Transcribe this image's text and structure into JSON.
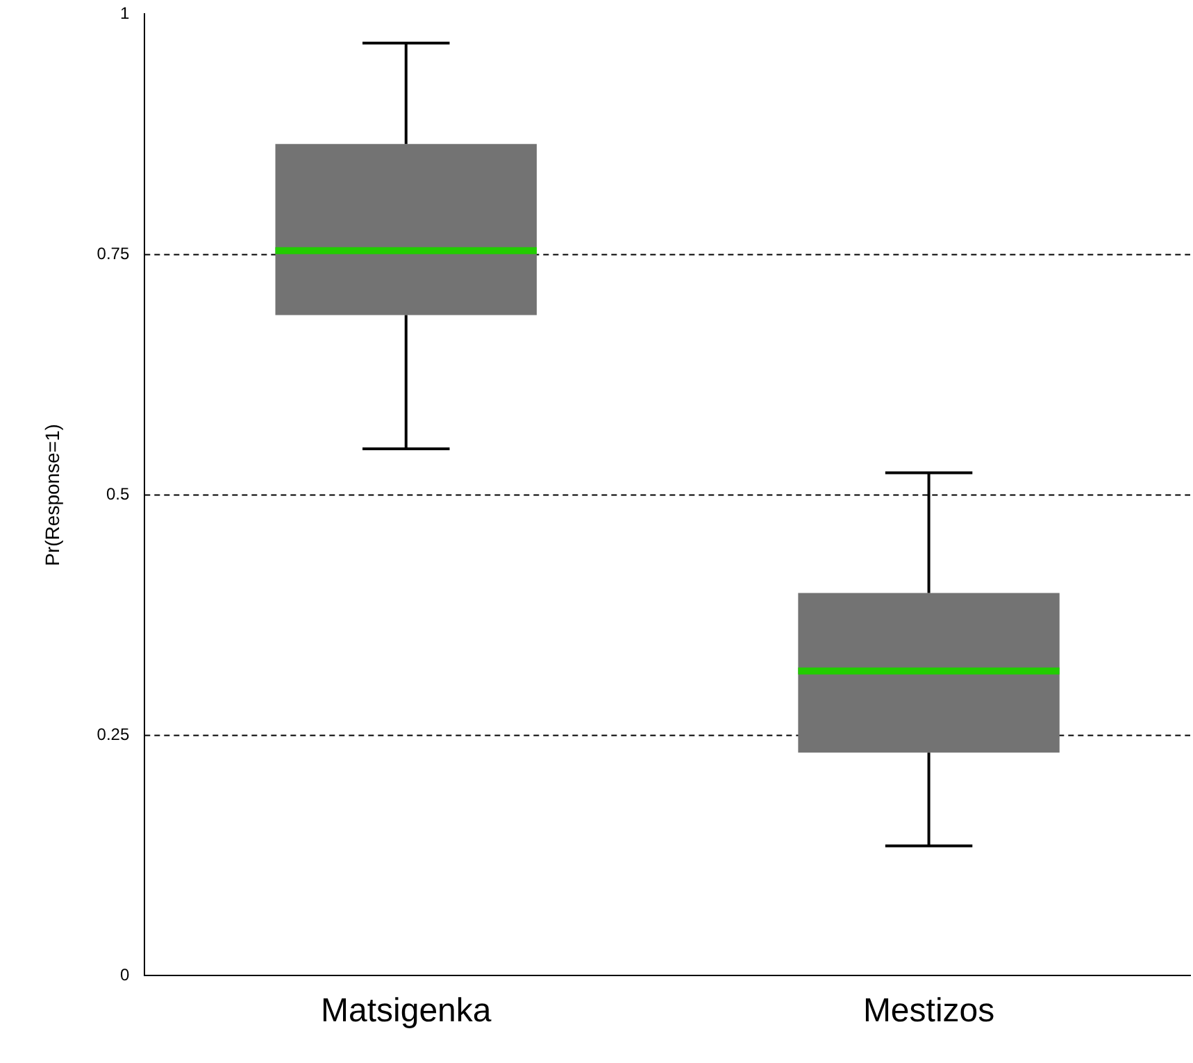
{
  "chart_data": {
    "type": "box",
    "ylabel": "Pr(Response=1)",
    "categories": [
      "Matsigenka",
      "Mestizos"
    ],
    "series": [
      {
        "color": "#737373",
        "boxes": [
          {
            "low": 0.548,
            "q1": 0.687,
            "median": 0.754,
            "q3": 0.865,
            "high": 0.97
          },
          {
            "low": 0.135,
            "q1": 0.232,
            "median": 0.317,
            "q3": 0.398,
            "high": 0.523
          }
        ]
      }
    ],
    "ylim": [
      0,
      1
    ],
    "yticks": [
      0,
      0.25,
      0.5,
      0.75,
      1
    ],
    "grid": false,
    "legend": false,
    "ref_lines": [
      {
        "axis": "y",
        "value": 0.25,
        "line_style": "dashed"
      },
      {
        "axis": "y",
        "value": 0.5,
        "line_style": "dashed"
      },
      {
        "axis": "y",
        "value": 0.75,
        "line_style": "dashed"
      }
    ]
  }
}
